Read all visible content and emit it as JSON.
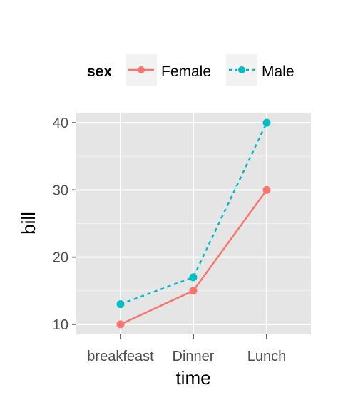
{
  "chart_data": {
    "type": "line",
    "title": "",
    "xlabel": "time",
    "ylabel": "bill",
    "categories": [
      "breakfeast",
      "Dinner",
      "Lunch"
    ],
    "y_ticks": [
      10,
      20,
      30,
      40
    ],
    "ylim": [
      8.5,
      41.5
    ],
    "grid": true,
    "legend": {
      "title": "sex",
      "position": "top"
    },
    "series": [
      {
        "name": "Female",
        "values": [
          10,
          15,
          30
        ],
        "color": "#F8766D",
        "linetype": "solid"
      },
      {
        "name": "Male",
        "values": [
          13,
          17,
          40
        ],
        "color": "#00BFC4",
        "linetype": "dashed"
      }
    ]
  }
}
